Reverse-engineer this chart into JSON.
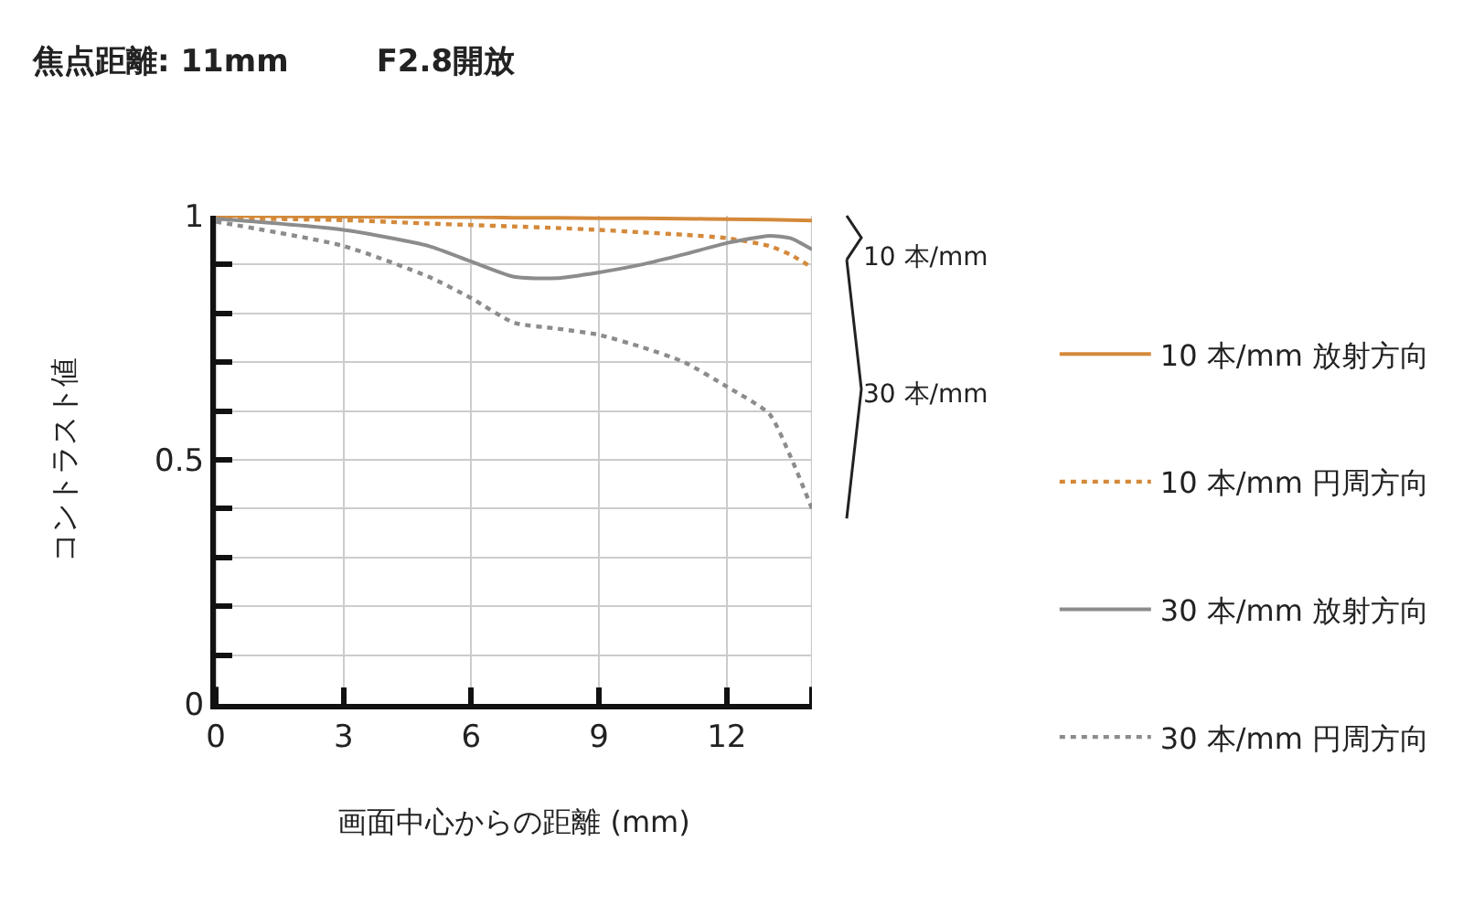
{
  "chart_data": {
    "type": "line",
    "title": "焦点距離: 11mm",
    "subtitle": "F2.8開放",
    "xlabel": "画面中心からの距離 (mm)",
    "ylabel": "コントラスト値",
    "x": [
      0,
      3,
      5,
      6,
      7,
      8,
      9,
      10,
      11,
      12,
      13,
      13.5,
      14
    ],
    "series": [
      {
        "name": "10 本/mm 放射方向",
        "color": "#d4893a",
        "line_style": "solid",
        "values": [
          1.0,
          0.998,
          0.997,
          0.997,
          0.996,
          0.996,
          0.995,
          0.995,
          0.994,
          0.993,
          0.992,
          0.991,
          0.99
        ]
      },
      {
        "name": "10 本/mm 円周方向",
        "color": "#d4893a",
        "line_style": "dotted",
        "values": [
          0.995,
          0.991,
          0.984,
          0.981,
          0.978,
          0.975,
          0.971,
          0.966,
          0.961,
          0.954,
          0.938,
          0.92,
          0.894
        ]
      },
      {
        "name": "30 本/mm 放射方向",
        "color": "#8c8c8c",
        "line_style": "solid",
        "values": [
          0.994,
          0.971,
          0.938,
          0.906,
          0.875,
          0.872,
          0.884,
          0.9,
          0.921,
          0.944,
          0.959,
          0.954,
          0.931
        ]
      },
      {
        "name": "30 本/mm 円周方向",
        "color": "#8c8c8c",
        "line_style": "dotted",
        "values": [
          0.988,
          0.938,
          0.875,
          0.831,
          0.781,
          0.769,
          0.756,
          0.731,
          0.7,
          0.65,
          0.594,
          0.506,
          0.4
        ]
      }
    ],
    "xlim": [
      0,
      14
    ],
    "xticks": [
      0,
      3,
      6,
      9,
      12,
      {
        "value": 14,
        "label": null
      }
    ],
    "ylim": [
      0,
      1
    ],
    "yticks": [
      0,
      {
        "value": 0.1,
        "label": null
      },
      {
        "value": 0.2,
        "label": null
      },
      {
        "value": 0.3,
        "label": null
      },
      {
        "value": 0.4,
        "label": null
      },
      {
        "value": 0.5,
        "label": "0.5"
      },
      {
        "value": 0.6,
        "label": null
      },
      {
        "value": 0.7,
        "label": null
      },
      {
        "value": 0.8,
        "label": null
      },
      {
        "value": 0.9,
        "label": null
      },
      1
    ],
    "grid": true,
    "legend": "right",
    "marker": "none",
    "annotations": [
      "10 本/mm",
      "30 本/mm"
    ]
  }
}
